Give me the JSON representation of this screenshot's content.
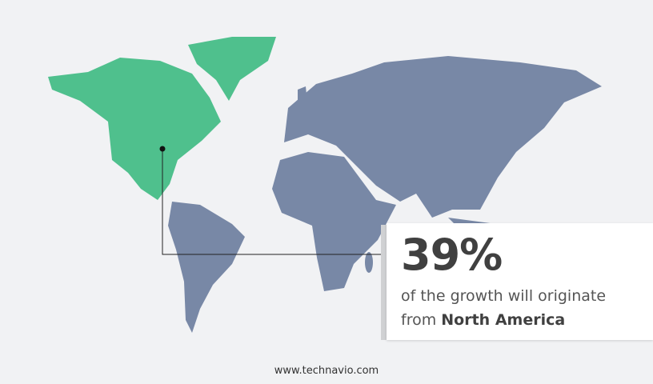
{
  "colors": {
    "background": "#f1f2f4",
    "highlight_region": "#4fc08d",
    "other_regions": "#7888a6",
    "text": "#404040"
  },
  "map": {
    "highlighted_region": "North America"
  },
  "callout": {
    "value": "39%",
    "text_line1": "of the growth will originate",
    "text_prefix": "from",
    "region": "North America"
  },
  "footer": {
    "website": "www.technavio.com"
  }
}
